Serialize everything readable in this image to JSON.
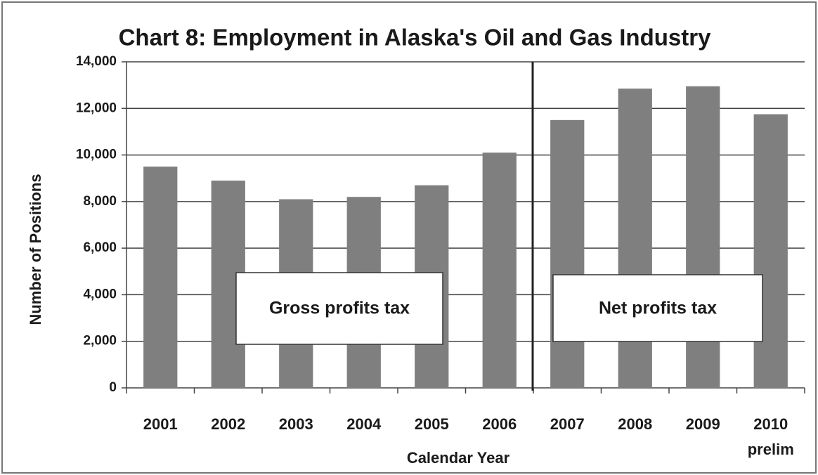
{
  "chart_data": {
    "type": "bar",
    "title": "Chart 8:  Employment in Alaska's Oil and Gas Industry",
    "x_label": "Calendar Year",
    "y_label": "Number of Positions",
    "categories": [
      "2001",
      "2002",
      "2003",
      "2004",
      "2005",
      "2006",
      "2007",
      "2008",
      "2009",
      "2010 prelim"
    ],
    "values": [
      9500,
      8900,
      8100,
      8200,
      8700,
      10100,
      11500,
      12850,
      12950,
      11750
    ],
    "color": "#7f7f7f",
    "ylim": [
      0,
      14000
    ],
    "yticks": [
      0,
      {
        "value": 2000,
        "label": "2,000"
      },
      {
        "value": 4000,
        "label": "4,000"
      },
      {
        "value": 6000,
        "label": "6,000"
      },
      {
        "value": 8000,
        "label": "8,000"
      },
      {
        "value": 10000,
        "label": "10,000"
      },
      {
        "value": 12000,
        "label": "12,000"
      },
      {
        "value": 14000,
        "label": "14,000"
      }
    ],
    "grid": true,
    "annotations": [
      {
        "text": "Gross profits tax"
      },
      {
        "text": "Net profits tax"
      }
    ]
  }
}
